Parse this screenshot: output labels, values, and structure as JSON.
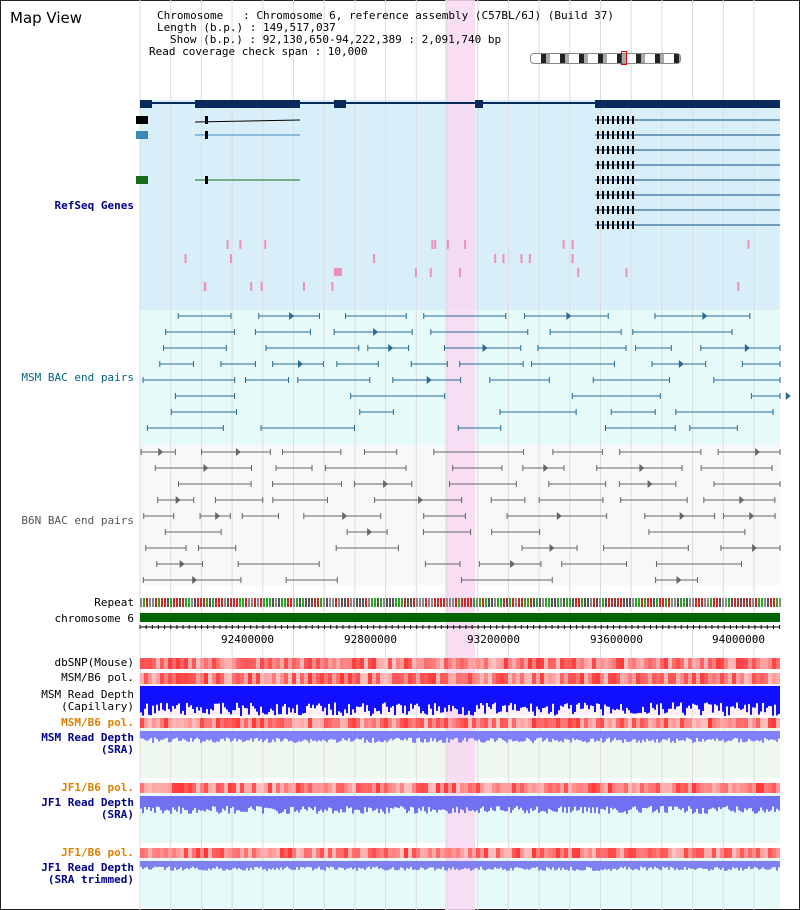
{
  "view": {
    "title": "Map View"
  },
  "header": {
    "chromosome": "Chromosome   : Chromosome 6, reference assembly (C57BL/6J) (Build 37)",
    "length": "Length (b.p.) : 149,517,037",
    "show": "Show (b.p.) : 92,130,650-94,222,389 : 2,091,740 bp",
    "coverage": "Read coverage check span : 10,000"
  },
  "tracks": {
    "refseq": "RefSeq Genes",
    "msm_bac": "MSM BAC end pairs",
    "b6n_bac": "B6N BAC end pairs",
    "repeat": "Repeat",
    "chromosome": "chromosome 6",
    "dbsnp": "dbSNP(Mouse)",
    "msm_b6_pol": "MSM/B6 pol.",
    "msm_depth_cap_1": "MSM Read Depth",
    "msm_depth_cap_2": "(Capillary)",
    "msm_b6_pol2": "MSM/B6 pol.",
    "msm_depth_sra_1": "MSM Read Depth",
    "msm_depth_sra_2": "(SRA)",
    "jf1_b6_pol": "JF1/B6 pol.",
    "jf1_depth_1": "JF1 Read Depth",
    "jf1_depth_2": "(SRA)",
    "jf1_b6_pol2": "JF1/B6 pol.",
    "jf1_trim_1": "JF1 Read Depth",
    "jf1_trim_2": "(SRA trimmed)"
  },
  "axis": {
    "ticks": [
      "92400000",
      "92800000",
      "93200000",
      "93600000",
      "94000000"
    ]
  },
  "colors": {
    "refseq_bg": "#d8eef8",
    "bac_bg": "#e6fafa",
    "highlight": "#f8d8f2",
    "gene": "#0a2a5e",
    "chromosome": "#006400",
    "depth": "#1010ff"
  }
}
